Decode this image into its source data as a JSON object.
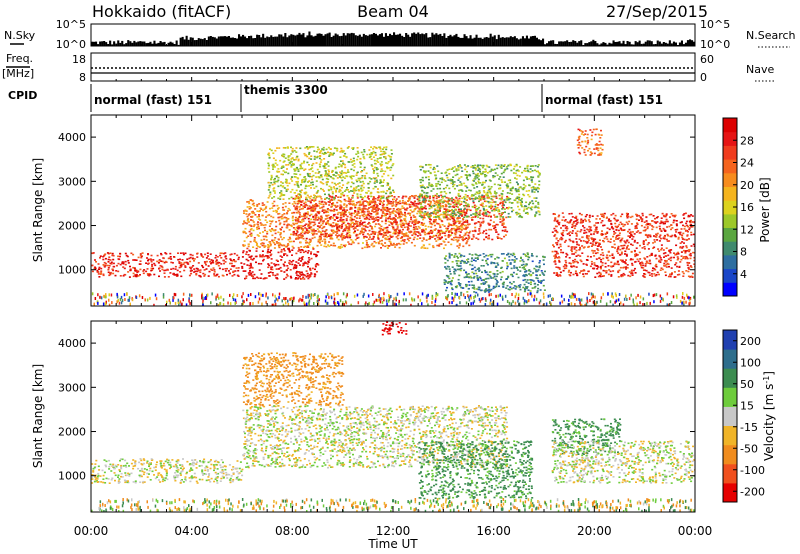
{
  "header": {
    "station": "Hokkaido (fitACF)",
    "beam": "Beam 04",
    "date": "27/Sep/2015"
  },
  "top_panel": {
    "left_label": "N.Sky",
    "right_label": "N.Search",
    "left_ticks": [
      "10^5",
      "10^0"
    ],
    "right_ticks": [
      "10^5",
      "10^0"
    ]
  },
  "freq_panel": {
    "left_label": "Freq.",
    "left_unit": "[MHz]",
    "right_label": "Nave",
    "left_ticks": [
      "18",
      "8"
    ],
    "right_ticks": [
      "60",
      "0"
    ]
  },
  "cpid": {
    "label": "CPID",
    "segments": [
      {
        "name": "normal (fast) 151",
        "start_hour": 0,
        "end_hour": 6
      },
      {
        "name": "themis 3300",
        "start_hour": 6,
        "end_hour": 18
      },
      {
        "name": "normal (fast) 151",
        "start_hour": 18,
        "end_hour": 24
      }
    ]
  },
  "chart_data": [
    {
      "type": "heatmap",
      "title": "",
      "xlabel": "Time UT",
      "ylabel": "Slant Range [km]",
      "xlim": [
        0,
        24
      ],
      "ylim": [
        180,
        4500
      ],
      "x_ticks": [
        "00:00",
        "04:00",
        "08:00",
        "12:00",
        "16:00",
        "20:00",
        "00:00"
      ],
      "y_ticks": [
        1000,
        2000,
        3000,
        4000
      ],
      "colorbar": {
        "label": "Power [dB]",
        "ticks": [
          "4",
          "8",
          "12",
          "16",
          "20",
          "24",
          "28"
        ],
        "colors": [
          "#0000ff",
          "#1a46c8",
          "#2e6ea0",
          "#3f8a6e",
          "#5aa640",
          "#9cc829",
          "#dcd21e",
          "#f5b41e",
          "#f78c1e",
          "#f5641e",
          "#f03c1e",
          "#e61414",
          "#dc0000"
        ]
      },
      "regions": [
        {
          "start_hour": 0,
          "end_hour": 6,
          "range_km": [
            850,
            1400
          ],
          "value_db": 26
        },
        {
          "start_hour": 6,
          "end_hour": 9,
          "range_km": [
            800,
            1500
          ],
          "value_db": 27
        },
        {
          "start_hour": 6,
          "end_hour": 15,
          "range_km": [
            1500,
            2600
          ],
          "value_db": 20
        },
        {
          "start_hour": 8,
          "end_hour": 16.5,
          "range_km": [
            1700,
            2700
          ],
          "value_db": 24
        },
        {
          "start_hour": 7,
          "end_hour": 12,
          "range_km": [
            2600,
            3800
          ],
          "value_db": 14
        },
        {
          "start_hour": 13,
          "end_hour": 17.8,
          "range_km": [
            2200,
            3400
          ],
          "value_db": 12
        },
        {
          "start_hour": 14,
          "end_hour": 18,
          "range_km": [
            500,
            1400
          ],
          "value_db": 8
        },
        {
          "start_hour": 18.3,
          "end_hour": 24,
          "range_km": [
            850,
            2300
          ],
          "value_db": 25
        },
        {
          "start_hour": 19.3,
          "end_hour": 20.3,
          "range_km": [
            3600,
            4200
          ],
          "value_db": 22
        }
      ]
    },
    {
      "type": "heatmap",
      "title": "",
      "xlabel": "Time UT",
      "ylabel": "Slant Range [km]",
      "xlim": [
        0,
        24
      ],
      "ylim": [
        180,
        4500
      ],
      "x_ticks": [
        "00:00",
        "04:00",
        "08:00",
        "12:00",
        "16:00",
        "20:00",
        "00:00"
      ],
      "y_ticks": [
        1000,
        2000,
        3000,
        4000
      ],
      "colorbar": {
        "label": "Velocity [m s",
        "label_superscript": "-1",
        "label_suffix": "]",
        "ticks": [
          "200",
          "100",
          "50",
          "15",
          "-15",
          "-50",
          "-100",
          "-200"
        ],
        "colors": [
          "#2040b0",
          "#2e6e8c",
          "#3c8c50",
          "#6ecc3c",
          "#c8c8c8",
          "#f0b428",
          "#f08c1e",
          "#f0501e",
          "#e60000"
        ]
      },
      "regions": [
        {
          "start_hour": 0,
          "end_hour": 6,
          "range_km": [
            850,
            1400
          ],
          "value_mps": 0
        },
        {
          "start_hour": 6,
          "end_hour": 16.5,
          "range_km": [
            1200,
            2600
          ],
          "value_mps": 0
        },
        {
          "start_hour": 6,
          "end_hour": 10,
          "range_km": [
            2600,
            3800
          ],
          "value_mps": -40
        },
        {
          "start_hour": 13,
          "end_hour": 17.5,
          "range_km": [
            500,
            1800
          ],
          "value_mps": 40
        },
        {
          "start_hour": 18.3,
          "end_hour": 21,
          "range_km": [
            1500,
            2300
          ],
          "value_mps": 40
        },
        {
          "start_hour": 18.3,
          "end_hour": 24,
          "range_km": [
            850,
            1800
          ],
          "value_mps": 0
        },
        {
          "start_hour": 11.5,
          "end_hour": 12.5,
          "range_km": [
            4200,
            4500
          ],
          "value_mps": -200
        }
      ]
    }
  ]
}
